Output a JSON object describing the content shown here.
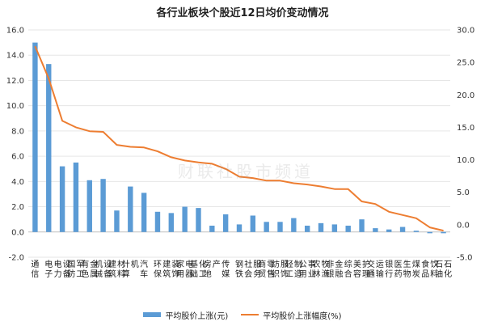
{
  "chart_data": {
    "type": "bar+line",
    "title": "各行业板块个股近12日均价变动情况",
    "categories": [
      "通信",
      "电子",
      "电力设备",
      "国防军工",
      "有色金属",
      "机械设备",
      "建筑材料",
      "计算机",
      "汽车",
      "环保",
      "建筑装饰",
      "家用电器",
      "基础化工",
      "房地产",
      "传媒",
      "钢铁",
      "社会服务",
      "商贸零售",
      "纺织服饰",
      "轻工制造",
      "公用事业",
      "农林牧渔",
      "非银金融",
      "综合",
      "美容护理",
      "交通运输",
      "银行",
      "医药生物",
      "煤炭",
      "食品饮料",
      "石油石化"
    ],
    "series": [
      {
        "name": "平均股价上涨(元)",
        "axis": "left",
        "type": "bar",
        "color": "#5b9bd5",
        "values": [
          15.0,
          13.3,
          5.2,
          5.5,
          4.1,
          4.2,
          1.7,
          3.6,
          3.1,
          1.6,
          1.5,
          2.0,
          1.9,
          0.5,
          1.4,
          0.6,
          1.3,
          0.8,
          0.8,
          1.1,
          0.5,
          0.7,
          0.6,
          0.5,
          1.0,
          0.3,
          0.2,
          0.4,
          0.1,
          -0.1,
          -0.1
        ]
      },
      {
        "name": "平均股价上涨幅度(%)",
        "axis": "right",
        "type": "line",
        "color": "#ed7d31",
        "values": [
          27.5,
          22.5,
          16.0,
          15.0,
          14.4,
          14.3,
          12.3,
          12.0,
          11.9,
          11.3,
          10.4,
          9.9,
          9.6,
          9.4,
          8.6,
          7.4,
          7.2,
          6.8,
          6.8,
          6.4,
          6.2,
          5.9,
          5.5,
          5.5,
          3.6,
          3.2,
          2.0,
          1.5,
          1.0,
          -0.4,
          -0.9
        ]
      }
    ],
    "y_left": {
      "min": -2.0,
      "max": 16.0,
      "ticks": [
        "-2.0",
        "0.0",
        "2.0",
        "4.0",
        "6.0",
        "8.0",
        "10.0",
        "12.0",
        "14.0",
        "16.0"
      ]
    },
    "y_right": {
      "min": -5.0,
      "max": 30.0,
      "ticks": [
        "-5.0",
        "0.0",
        "5.0",
        "10.0",
        "15.0",
        "20.0",
        "25.0",
        "30.0"
      ]
    },
    "legend_position": "bottom"
  },
  "watermark": "财联社股市频道"
}
